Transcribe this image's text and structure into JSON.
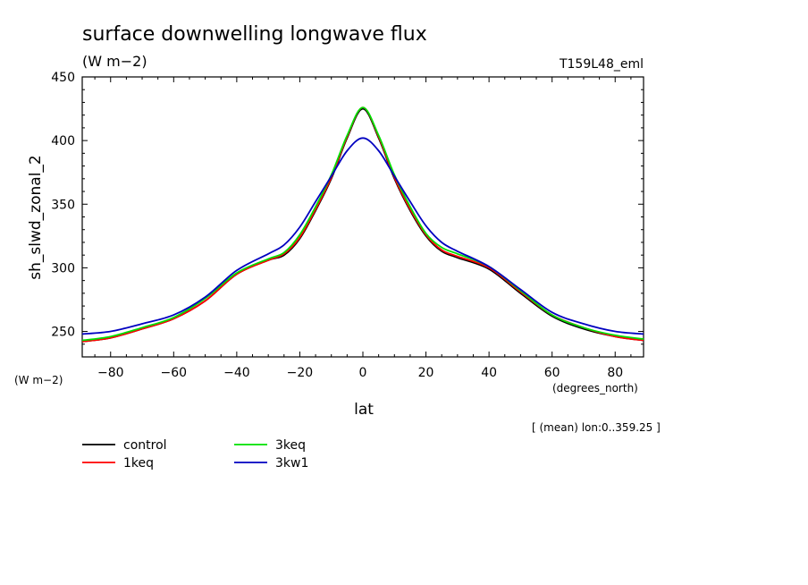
{
  "chart_data": {
    "type": "line",
    "title": "surface downwelling longwave flux",
    "units_label": "(W m−2)",
    "experiment_label": "T159L48_eml",
    "xlabel": "lat",
    "x_units": "(degrees_north)",
    "ylabel": "sh_slwd_zonal_2",
    "y_units": "(W m−2)",
    "averaging_note": "[ (mean) lon:0..359.25 ]",
    "xlim": [
      -89,
      89
    ],
    "ylim": [
      230,
      450
    ],
    "x_ticks": [
      -80,
      -60,
      -40,
      -20,
      0,
      20,
      40,
      60,
      80
    ],
    "y_ticks": [
      250,
      300,
      350,
      400,
      450
    ],
    "grid": false,
    "legend_position": "bottom-left",
    "x": [
      -89,
      -80,
      -70,
      -60,
      -50,
      -40,
      -30,
      -25,
      -20,
      -15,
      -10,
      -5,
      0,
      5,
      10,
      15,
      20,
      25,
      30,
      40,
      50,
      60,
      70,
      80,
      89
    ],
    "series": [
      {
        "name": "control",
        "color": "#000000",
        "values": [
          242,
          245,
          252,
          260,
          274,
          295,
          306,
          310,
          323,
          345,
          370,
          402,
          425,
          402,
          370,
          345,
          325,
          313,
          308,
          299,
          280,
          262,
          252,
          246,
          243
        ]
      },
      {
        "name": "1keq",
        "color": "#ff0000",
        "values": [
          242,
          245,
          252,
          260,
          274,
          295,
          306,
          311,
          324,
          346,
          371,
          403,
          426,
          403,
          371,
          346,
          326,
          314,
          309,
          300,
          281,
          263,
          253,
          246,
          243
        ]
      },
      {
        "name": "3keq",
        "color": "#00e000",
        "values": [
          243,
          246,
          253,
          261,
          276,
          296,
          307,
          312,
          326,
          348,
          373,
          404,
          426,
          404,
          373,
          348,
          327,
          316,
          311,
          301,
          282,
          263,
          253,
          247,
          244
        ]
      },
      {
        "name": "3kw1",
        "color": "#0000c0",
        "values": [
          248,
          250,
          256,
          263,
          277,
          298,
          311,
          318,
          332,
          352,
          372,
          392,
          402,
          392,
          372,
          352,
          333,
          320,
          313,
          301,
          283,
          265,
          256,
          250,
          248
        ]
      }
    ]
  }
}
